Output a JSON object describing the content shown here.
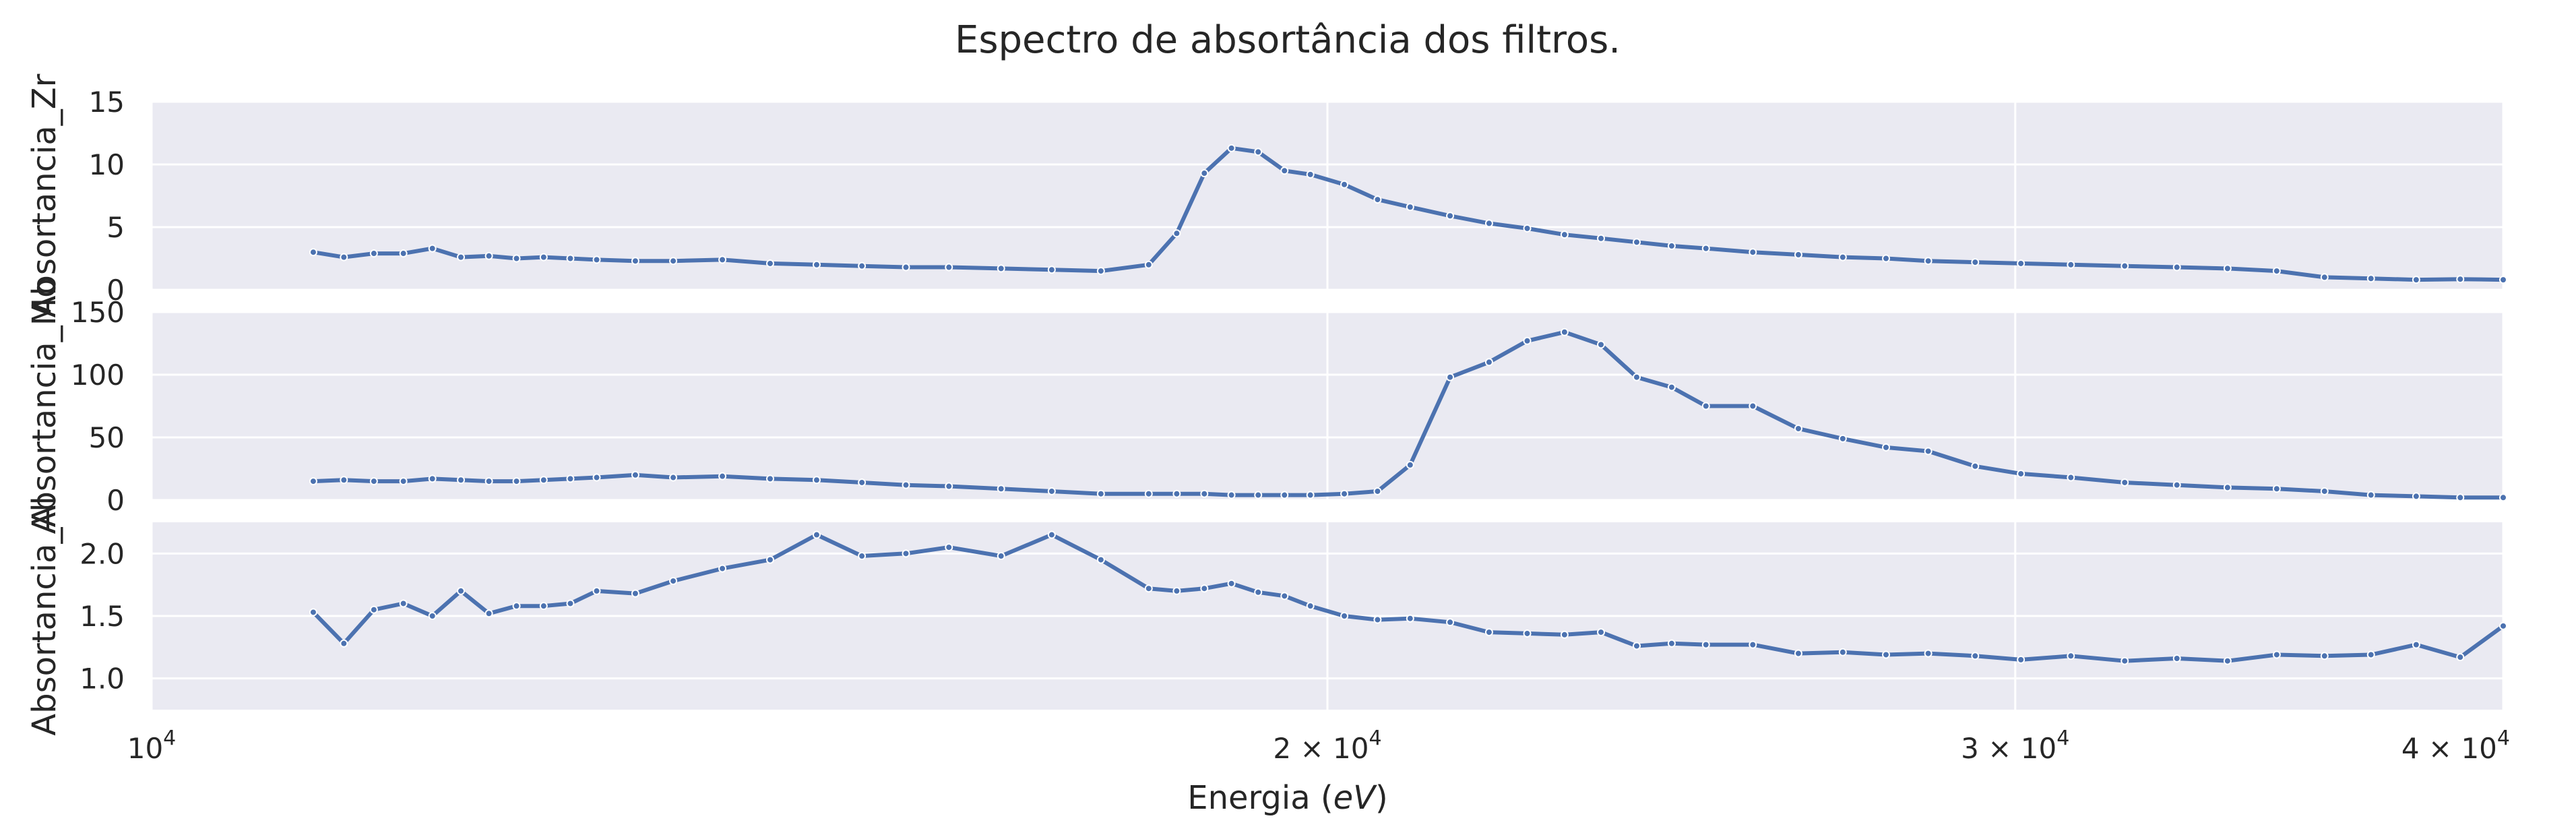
{
  "chart_data": {
    "type": "line",
    "title": "Espectro de absortância dos filtros.",
    "xlabel": "Energia (eV)",
    "xlabel_parts": [
      "Energia (",
      "eV",
      ")"
    ],
    "xscale": "log",
    "xlim": [
      10000,
      40000
    ],
    "xticks": [
      {
        "value": 10000,
        "base": "10",
        "exp": "4",
        "label": "10^4"
      },
      {
        "value": 20000,
        "base": "2 × 10",
        "exp": "4",
        "label": "2×10^4"
      },
      {
        "value": 30000,
        "base": "3 × 10",
        "exp": "4",
        "label": "3×10^4"
      },
      {
        "value": 40000,
        "base": "4 × 10",
        "exp": "4",
        "label": "4×10^4"
      }
    ],
    "grid": true,
    "line_color": "#4c72b0",
    "panel_color": "#eaeaf2",
    "x": [
      11000,
      11200,
      11400,
      11600,
      11800,
      12000,
      12200,
      12400,
      12600,
      12800,
      13000,
      13300,
      13600,
      14000,
      14400,
      14800,
      15200,
      15600,
      16000,
      16500,
      17000,
      17500,
      18000,
      18300,
      18600,
      18900,
      19200,
      19500,
      19800,
      20200,
      20600,
      21000,
      21500,
      22000,
      22500,
      23000,
      23500,
      24000,
      24500,
      25000,
      25700,
      26400,
      27100,
      27800,
      28500,
      29300,
      30100,
      31000,
      32000,
      33000,
      34000,
      35000,
      36000,
      37000,
      38000,
      39000,
      40000
    ],
    "series": [
      {
        "name": "",
        "ylabel": "Absortancia_Zr",
        "ylim": [
          0,
          15
        ],
        "yticks": [
          0,
          5,
          10,
          15
        ],
        "values": [
          3.0,
          2.6,
          2.9,
          2.9,
          3.3,
          2.6,
          2.7,
          2.5,
          2.6,
          2.5,
          2.4,
          2.3,
          2.3,
          2.4,
          2.1,
          2.0,
          1.9,
          1.8,
          1.8,
          1.7,
          1.6,
          1.5,
          2.0,
          4.5,
          9.3,
          11.3,
          11.0,
          9.5,
          9.2,
          8.4,
          7.2,
          6.6,
          5.9,
          5.3,
          4.9,
          4.4,
          4.1,
          3.8,
          3.5,
          3.3,
          3.0,
          2.8,
          2.6,
          2.5,
          2.3,
          2.2,
          2.1,
          2.0,
          1.9,
          1.8,
          1.7,
          1.5,
          1.0,
          0.9,
          0.8,
          0.85,
          0.8
        ]
      },
      {
        "name": "",
        "ylabel": "Absortancia_Mo",
        "ylim": [
          0,
          150
        ],
        "yticks": [
          0,
          50,
          100,
          150
        ],
        "values": [
          15,
          16,
          15,
          15,
          17,
          16,
          15,
          15,
          16,
          17,
          18,
          20,
          18,
          19,
          17,
          16,
          14,
          12,
          11,
          9,
          7,
          5,
          5,
          5,
          5,
          4,
          4,
          4,
          4,
          5,
          7,
          28,
          98,
          110,
          127,
          134,
          124,
          98,
          90,
          75,
          75,
          57,
          49,
          42,
          39,
          27,
          21,
          18,
          14,
          12,
          10,
          9,
          7,
          4,
          3,
          2,
          2
        ]
      },
      {
        "name": "",
        "ylabel": "Absortancia_Al",
        "ylim": [
          0.75,
          2.25
        ],
        "yticks": [
          1.0,
          1.5,
          2.0
        ],
        "values": [
          1.53,
          1.28,
          1.55,
          1.6,
          1.5,
          1.7,
          1.52,
          1.58,
          1.58,
          1.6,
          1.7,
          1.68,
          1.78,
          1.88,
          1.95,
          2.15,
          1.98,
          2.0,
          2.05,
          1.98,
          2.15,
          1.95,
          1.72,
          1.7,
          1.72,
          1.76,
          1.69,
          1.66,
          1.58,
          1.5,
          1.47,
          1.48,
          1.45,
          1.37,
          1.36,
          1.35,
          1.37,
          1.26,
          1.28,
          1.27,
          1.27,
          1.2,
          1.21,
          1.19,
          1.2,
          1.18,
          1.15,
          1.18,
          1.14,
          1.16,
          1.14,
          1.19,
          1.18,
          1.19,
          1.27,
          1.17,
          1.42
        ]
      }
    ]
  }
}
